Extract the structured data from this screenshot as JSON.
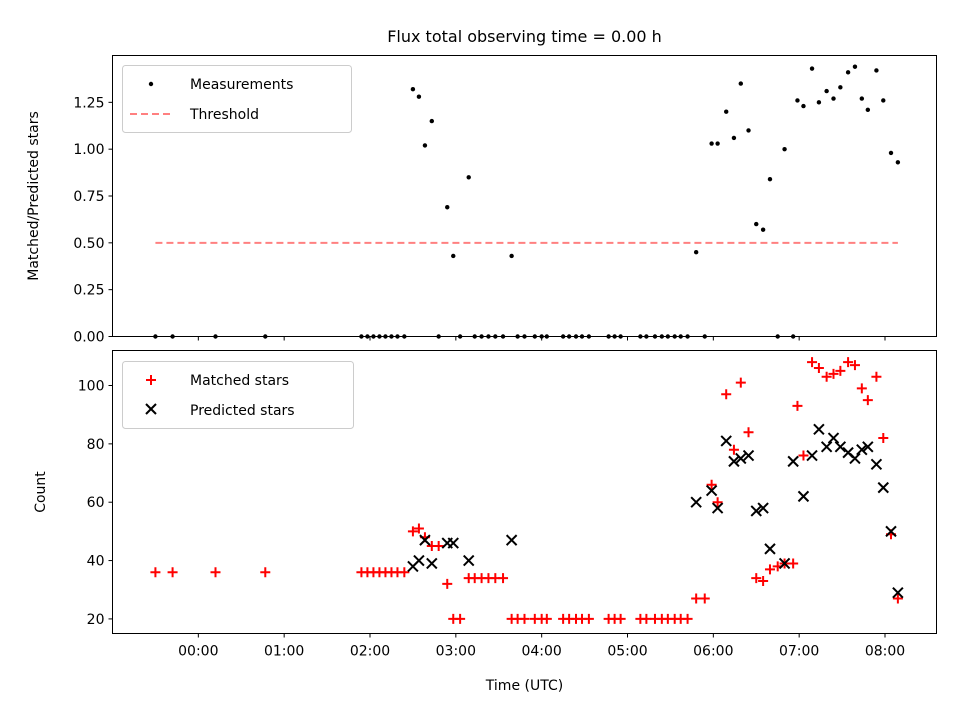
{
  "chart_data": [
    {
      "type": "scatter",
      "title": "Flux total observing time = 0.00 h",
      "xlabel": "",
      "ylabel": "Matched/Predicted stars",
      "xunits": "hours (UTC)",
      "xlim": [
        -1.0,
        8.6
      ],
      "ylim": [
        0.0,
        1.5
      ],
      "xticks": [
        0,
        1,
        2,
        3,
        4,
        5,
        6,
        7,
        8
      ],
      "yticks": [
        0.0,
        0.25,
        0.5,
        0.75,
        1.0,
        1.25
      ],
      "ytick_labels": [
        "0.00",
        "0.25",
        "0.50",
        "0.75",
        "1.00",
        "1.25"
      ],
      "grid": false,
      "legend_position": "upper-left",
      "series": [
        {
          "name": "Measurements",
          "marker": "dot",
          "color": "#000000",
          "x": [
            -0.5,
            -0.3,
            0.2,
            0.78,
            1.9,
            1.97,
            2.04,
            2.11,
            2.18,
            2.25,
            2.32,
            2.4,
            2.5,
            2.57,
            2.64,
            2.72,
            2.8,
            2.9,
            2.97,
            3.05,
            3.15,
            3.22,
            3.3,
            3.38,
            3.46,
            3.55,
            3.65,
            3.72,
            3.8,
            3.92,
            4.0,
            4.06,
            4.25,
            4.32,
            4.4,
            4.47,
            4.55,
            4.78,
            4.85,
            4.92,
            5.15,
            5.22,
            5.32,
            5.4,
            5.47,
            5.55,
            5.62,
            5.7,
            5.8,
            5.9,
            5.98,
            6.05,
            6.15,
            6.24,
            6.32,
            6.41,
            6.5,
            6.58,
            6.66,
            6.75,
            6.83,
            6.93,
            6.98,
            7.05,
            7.15,
            7.23,
            7.32,
            7.4,
            7.48,
            7.57,
            7.65,
            7.73,
            7.8,
            7.9,
            7.98,
            8.07,
            8.15
          ],
          "y": [
            0.0,
            0.0,
            0.0,
            0.0,
            0.0,
            0.0,
            0.0,
            0.0,
            0.0,
            0.0,
            0.0,
            0.0,
            1.32,
            1.28,
            1.02,
            1.15,
            0.0,
            0.69,
            0.43,
            0.0,
            0.85,
            0.0,
            0.0,
            0.0,
            0.0,
            0.0,
            0.43,
            0.0,
            0.0,
            0.0,
            0.0,
            0.0,
            0.0,
            0.0,
            0.0,
            0.0,
            0.0,
            0.0,
            0.0,
            0.0,
            0.0,
            0.0,
            0.0,
            0.0,
            0.0,
            0.0,
            0.0,
            0.0,
            0.45,
            0.0,
            1.03,
            1.03,
            1.2,
            1.06,
            1.35,
            1.1,
            0.6,
            0.57,
            0.84,
            0.0,
            1.0,
            0.0,
            1.26,
            1.23,
            1.43,
            1.25,
            1.31,
            1.27,
            1.33,
            1.41,
            1.44,
            1.27,
            1.21,
            1.42,
            1.26,
            0.98,
            0.93
          ]
        },
        {
          "name": "Threshold",
          "type": "line",
          "style": "dashed",
          "color": "#ff8080",
          "x": [
            -0.5,
            8.15
          ],
          "y": [
            0.5,
            0.5
          ]
        }
      ]
    },
    {
      "type": "scatter",
      "title": "",
      "xlabel": "Time (UTC)",
      "ylabel": "Count",
      "xunits": "hours (UTC)",
      "xlim": [
        -1.0,
        8.6
      ],
      "ylim": [
        15,
        112
      ],
      "xticks": [
        0,
        1,
        2,
        3,
        4,
        5,
        6,
        7,
        8
      ],
      "xtick_labels": [
        "00:00",
        "01:00",
        "02:00",
        "03:00",
        "04:00",
        "05:00",
        "06:00",
        "07:00",
        "08:00"
      ],
      "yticks": [
        20,
        40,
        60,
        80,
        100
      ],
      "ytick_labels": [
        "20",
        "40",
        "60",
        "80",
        "100"
      ],
      "grid": false,
      "legend_position": "upper-left",
      "series": [
        {
          "name": "Matched stars",
          "marker": "plus",
          "color": "#ff0000",
          "x": [
            -0.5,
            -0.3,
            0.2,
            0.78,
            1.9,
            1.97,
            2.04,
            2.11,
            2.18,
            2.25,
            2.32,
            2.4,
            2.5,
            2.57,
            2.64,
            2.72,
            2.8,
            2.9,
            2.97,
            3.05,
            3.15,
            3.22,
            3.3,
            3.38,
            3.46,
            3.55,
            3.65,
            3.72,
            3.8,
            3.92,
            4.0,
            4.06,
            4.25,
            4.32,
            4.4,
            4.47,
            4.55,
            4.78,
            4.85,
            4.92,
            5.15,
            5.22,
            5.32,
            5.4,
            5.47,
            5.55,
            5.62,
            5.7,
            5.8,
            5.9,
            5.98,
            6.05,
            6.15,
            6.24,
            6.32,
            6.41,
            6.5,
            6.58,
            6.66,
            6.75,
            6.83,
            6.93,
            6.98,
            7.05,
            7.15,
            7.23,
            7.32,
            7.4,
            7.48,
            7.57,
            7.65,
            7.73,
            7.8,
            7.9,
            7.98,
            8.07,
            8.15
          ],
          "y": [
            36,
            36,
            36,
            36,
            36,
            36,
            36,
            36,
            36,
            36,
            36,
            36,
            50,
            51,
            48,
            45,
            45,
            32,
            20,
            20,
            34,
            34,
            34,
            34,
            34,
            34,
            20,
            20,
            20,
            20,
            20,
            20,
            20,
            20,
            20,
            20,
            20,
            20,
            20,
            20,
            20,
            20,
            20,
            20,
            20,
            20,
            20,
            20,
            27,
            27,
            66,
            60,
            97,
            78,
            101,
            84,
            34,
            33,
            37,
            38,
            39,
            39,
            93,
            76,
            108,
            106,
            103,
            104,
            105,
            108,
            107,
            99,
            95,
            103,
            82,
            49,
            27
          ]
        },
        {
          "name": "Predicted stars",
          "marker": "x",
          "color": "#000000",
          "x": [
            2.5,
            2.57,
            2.64,
            2.72,
            2.9,
            2.97,
            3.15,
            3.65,
            5.8,
            5.98,
            6.05,
            6.15,
            6.24,
            6.32,
            6.41,
            6.5,
            6.58,
            6.66,
            6.83,
            6.93,
            7.05,
            7.15,
            7.23,
            7.32,
            7.4,
            7.48,
            7.57,
            7.65,
            7.73,
            7.8,
            7.9,
            7.98,
            8.07,
            8.15
          ],
          "y": [
            38,
            40,
            47,
            39,
            46,
            46,
            40,
            47,
            60,
            64,
            58,
            81,
            74,
            75,
            76,
            57,
            58,
            44,
            39,
            74,
            62,
            76,
            85,
            79,
            82,
            79,
            77,
            75,
            78,
            79,
            73,
            65,
            50,
            29
          ]
        }
      ]
    }
  ]
}
